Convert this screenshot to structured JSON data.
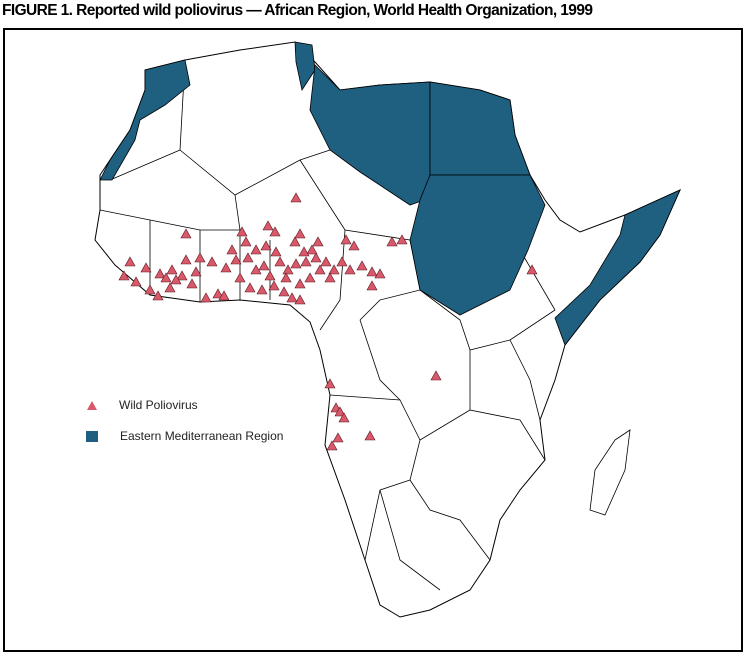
{
  "title": "FIGURE 1. Reported wild poliovirus — African Region, World Health Organization, 1999",
  "legend": [
    {
      "label": "Wild Poliovirus",
      "symbol": "triangle",
      "color": "#d9596a"
    },
    {
      "label": "Eastern Mediterranean Region",
      "symbol": "square",
      "color": "#1f5f7f"
    }
  ],
  "colors": {
    "emr": "#1f5f7f",
    "case": "#d9596a",
    "land": "#ffffff",
    "border": "#000000"
  }
}
